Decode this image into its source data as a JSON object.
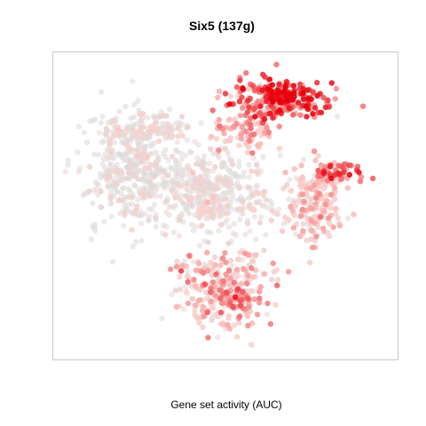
{
  "chart_data": {
    "type": "scatter",
    "title": "Six5 (137g)",
    "xlabel": "Gene set activity (AUC)",
    "ylabel": "",
    "axes_shown": false,
    "grid": false,
    "legend": "none",
    "color_scale": {
      "low": "#d9d9d9",
      "mid": "#fcd0cc",
      "high": "#e8000b"
    },
    "x_range": [
      0,
      100
    ],
    "y_range": [
      0,
      100
    ],
    "clusters": [
      {
        "name": "top-right",
        "cx": 67,
        "cy": 88,
        "sx": 8.5,
        "sy": 3.3,
        "n": 230,
        "auc_mean": 0.65,
        "auc_sd": 0.22
      },
      {
        "name": "top-right-core",
        "cx": 69,
        "cy": 89,
        "sx": 3,
        "sy": 2,
        "n": 45,
        "auc_mean": 0.95,
        "auc_sd": 0.05
      },
      {
        "name": "top-right-tail",
        "cx": 57,
        "cy": 77,
        "sx": 6,
        "sy": 3.5,
        "n": 90,
        "auc_mean": 0.38,
        "auc_sd": 0.15
      },
      {
        "name": "right-arm",
        "cx": 85,
        "cy": 62,
        "sx": 3.5,
        "sy": 1.6,
        "n": 55,
        "auc_mean": 0.6,
        "auc_sd": 0.2
      },
      {
        "name": "right-lobe",
        "cx": 78,
        "cy": 52,
        "sx": 5,
        "sy": 7,
        "n": 190,
        "auc_mean": 0.3,
        "auc_sd": 0.15
      },
      {
        "name": "left-cloud",
        "cx": 22,
        "cy": 62,
        "sx": 8,
        "sy": 10,
        "n": 420,
        "auc_mean": 0.05,
        "auc_sd": 0.08
      },
      {
        "name": "center-cloud",
        "cx": 47,
        "cy": 55,
        "sx": 9,
        "sy": 8,
        "n": 380,
        "auc_mean": 0.08,
        "auc_sd": 0.1
      },
      {
        "name": "upper-left-band",
        "cx": 24,
        "cy": 77,
        "sx": 8,
        "sy": 3,
        "n": 120,
        "auc_mean": 0.1,
        "auc_sd": 0.1
      },
      {
        "name": "bottom-lobe",
        "cx": 50,
        "cy": 20,
        "sx": 7.5,
        "sy": 7,
        "n": 300,
        "auc_mean": 0.28,
        "auc_sd": 0.18
      },
      {
        "name": "bottom-right-spot",
        "cx": 54,
        "cy": 16,
        "sx": 2.5,
        "sy": 2.5,
        "n": 35,
        "auc_mean": 0.55,
        "auc_sd": 0.15
      }
    ]
  }
}
